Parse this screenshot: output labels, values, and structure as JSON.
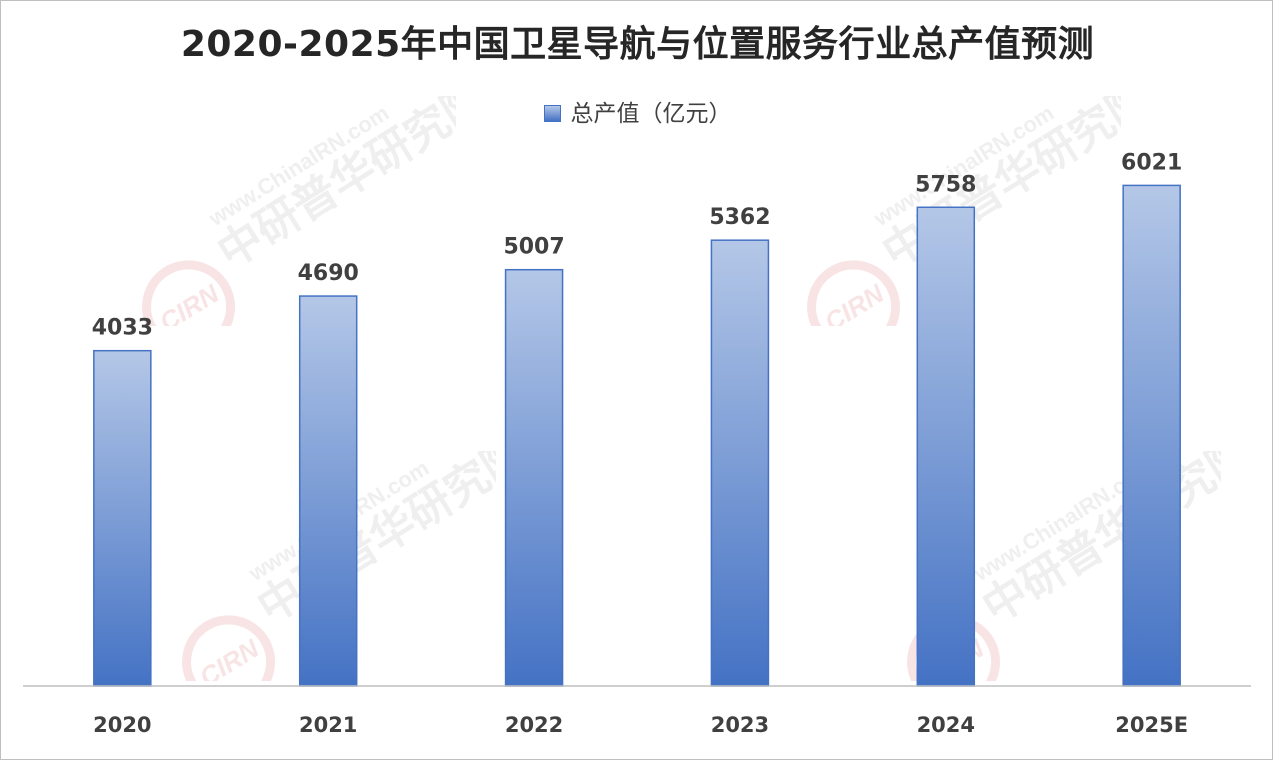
{
  "chart_data": {
    "type": "bar",
    "title": "2020-2025年中国卫星导航与位置服务行业总产值预测",
    "categories": [
      "2020",
      "2021",
      "2022",
      "2023",
      "2024",
      "2025E"
    ],
    "series": [
      {
        "name": "总产值（亿元）",
        "values": [
          4033,
          4690,
          5007,
          5362,
          5758,
          6021
        ]
      }
    ],
    "ylim": [
      0,
      7000
    ],
    "grid": false,
    "legend_position": "top",
    "data_labels": true,
    "colors": {
      "bar_top": "#b4c7e7",
      "bar_bottom": "#4472c4",
      "bar_border": "#4472c4"
    }
  },
  "watermark": {
    "url": "www.ChinaIRN.com",
    "cn": "中研普华研究院",
    "logo": "CIRN"
  }
}
